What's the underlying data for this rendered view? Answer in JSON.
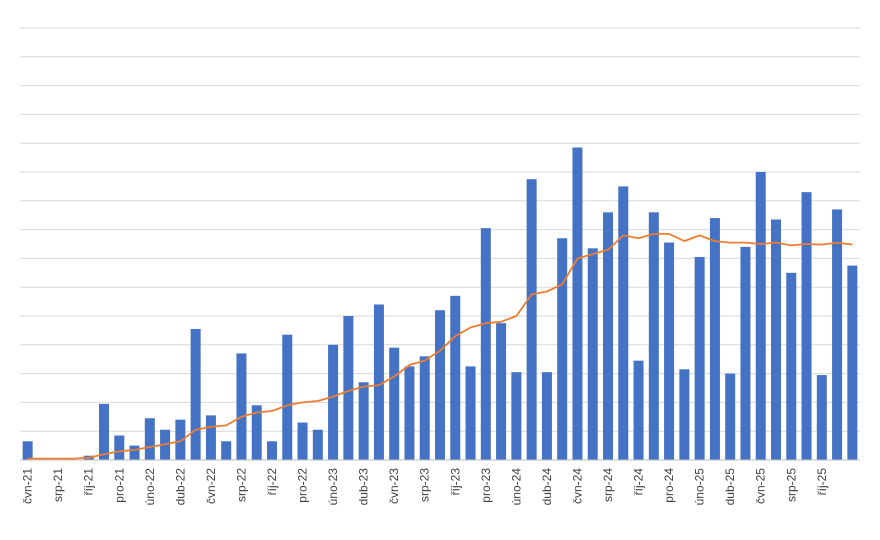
{
  "chart_data": {
    "type": "bar",
    "title": "",
    "xlabel": "",
    "ylabel": "",
    "grid": true,
    "ylim": [
      0,
      15
    ],
    "y_gridline_count": 15,
    "x_tick_labels": [
      "čvn-21",
      "srp-21",
      "říj-21",
      "pro-21",
      "úno-22",
      "dub-22",
      "čvn-22",
      "srp-22",
      "říj-22",
      "pro-22",
      "úno-23",
      "dub-23",
      "čvn-23",
      "srp-23",
      "říj-23",
      "pro-23",
      "úno-24",
      "dub-24",
      "čvn-24",
      "srp-24",
      "říj-24",
      "pro-24",
      "úno-25",
      "dub-25",
      "čvn-25",
      "srp-25",
      "říj-25"
    ],
    "label_every": 2,
    "colors": {
      "bars": "#4472C4",
      "line": "#ED7D31",
      "grid": "#D9D9D9",
      "axis": "#BFBFBF"
    },
    "series": [
      {
        "type": "bar",
        "values": [
          0.65,
          0.0,
          0.0,
          0.0,
          0.15,
          1.95,
          0.85,
          0.5,
          1.45,
          1.05,
          1.4,
          4.55,
          1.55,
          0.65,
          3.7,
          1.9,
          0.65,
          4.35,
          1.3,
          1.05,
          4.0,
          5.0,
          2.7,
          5.4,
          3.9,
          3.25,
          3.6,
          5.2,
          5.7,
          3.25,
          8.05,
          4.75,
          3.05,
          9.75,
          3.05,
          7.7,
          10.85,
          7.35,
          8.6,
          9.5,
          3.45,
          8.6,
          7.55,
          3.15,
          7.05,
          8.4,
          3.0,
          7.4,
          10.0,
          8.35,
          6.5,
          9.3,
          2.95,
          8.7,
          6.75
        ]
      },
      {
        "type": "line",
        "values": [
          0.05,
          0.05,
          0.05,
          0.05,
          0.08,
          0.2,
          0.3,
          0.35,
          0.45,
          0.55,
          0.65,
          1.05,
          1.15,
          1.2,
          1.5,
          1.65,
          1.7,
          1.9,
          2.0,
          2.05,
          2.2,
          2.4,
          2.55,
          2.6,
          2.9,
          3.3,
          3.45,
          3.8,
          4.3,
          4.6,
          4.75,
          4.8,
          5.0,
          5.75,
          5.85,
          6.1,
          7.0,
          7.15,
          7.3,
          7.8,
          7.7,
          7.85,
          7.85,
          7.6,
          7.8,
          7.6,
          7.55,
          7.55,
          7.5,
          7.55,
          7.45,
          7.5,
          7.48,
          7.55,
          7.48
        ]
      }
    ]
  }
}
